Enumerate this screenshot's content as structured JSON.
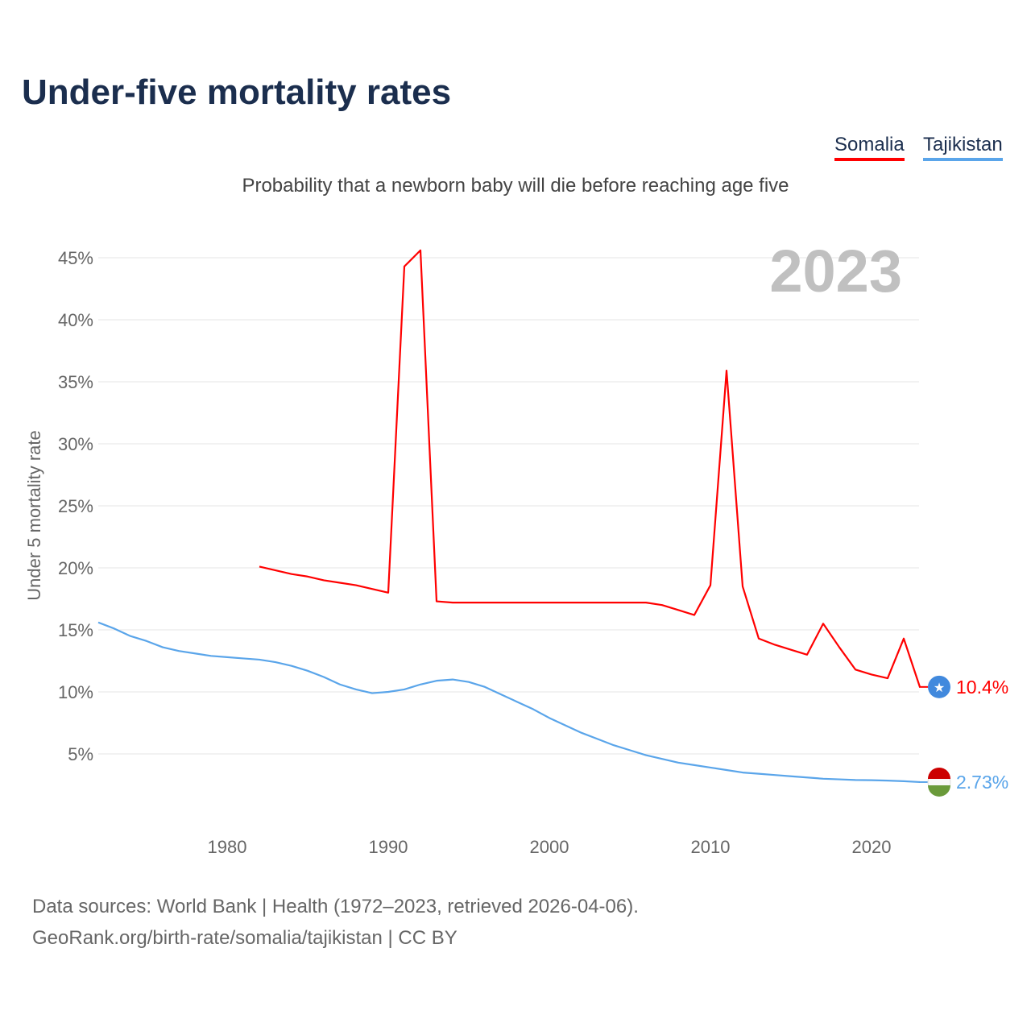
{
  "title": "Under-five mortality rates",
  "subtitle": "Probability that a newborn baby will die before reaching age five",
  "year_label": "2023",
  "source_lines": [
    "Data sources: World Bank | Health (1972–2023, retrieved 2026-04-06).",
    "GeoRank.org/birth-rate/somalia/tajikistan | CC BY"
  ],
  "chart_data": {
    "type": "line",
    "ylabel": "Under 5 mortality rate",
    "xlim": [
      1972,
      2023
    ],
    "ylim": [
      0,
      47
    ],
    "yticks": [
      5,
      10,
      15,
      20,
      25,
      30,
      35,
      40,
      45
    ],
    "ytick_labels": [
      "5%",
      "10%",
      "15%",
      "20%",
      "25%",
      "30%",
      "35%",
      "40%",
      "45%"
    ],
    "xticks": [
      1980,
      1990,
      2000,
      2010,
      2020
    ],
    "xtick_labels": [
      "1980",
      "1990",
      "2000",
      "2010",
      "2020"
    ],
    "grid": true,
    "legend": "top-right",
    "series": [
      {
        "name": "Somalia",
        "color": "#ff0000",
        "end_label": "10.4%",
        "x": [
          1982,
          1983,
          1984,
          1985,
          1986,
          1987,
          1988,
          1989,
          1990,
          1991,
          1992,
          1993,
          1994,
          1995,
          1996,
          1997,
          1998,
          1999,
          2000,
          2001,
          2002,
          2003,
          2004,
          2005,
          2006,
          2007,
          2008,
          2009,
          2010,
          2011,
          2012,
          2013,
          2014,
          2015,
          2016,
          2017,
          2018,
          2019,
          2020,
          2021,
          2022,
          2023
        ],
        "values": [
          20.1,
          19.8,
          19.5,
          19.3,
          19.0,
          18.8,
          18.6,
          18.3,
          18.0,
          44.3,
          45.6,
          17.3,
          17.2,
          17.2,
          17.2,
          17.2,
          17.2,
          17.2,
          17.2,
          17.2,
          17.2,
          17.2,
          17.2,
          17.2,
          17.2,
          17.0,
          16.6,
          16.2,
          18.6,
          35.9,
          18.5,
          14.3,
          13.8,
          13.4,
          13.0,
          15.5,
          13.6,
          11.8,
          11.4,
          11.1,
          14.3,
          10.4
        ]
      },
      {
        "name": "Tajikistan",
        "color": "#5aa5ea",
        "end_label": "2.73%",
        "x": [
          1972,
          1973,
          1974,
          1975,
          1976,
          1977,
          1978,
          1979,
          1980,
          1981,
          1982,
          1983,
          1984,
          1985,
          1986,
          1987,
          1988,
          1989,
          1990,
          1991,
          1992,
          1993,
          1994,
          1995,
          1996,
          1997,
          1998,
          1999,
          2000,
          2001,
          2002,
          2003,
          2004,
          2005,
          2006,
          2007,
          2008,
          2009,
          2010,
          2011,
          2012,
          2013,
          2014,
          2015,
          2016,
          2017,
          2018,
          2019,
          2020,
          2021,
          2022,
          2023
        ],
        "values": [
          15.6,
          15.1,
          14.5,
          14.1,
          13.6,
          13.3,
          13.1,
          12.9,
          12.8,
          12.7,
          12.6,
          12.4,
          12.1,
          11.7,
          11.2,
          10.6,
          10.2,
          9.9,
          10.0,
          10.2,
          10.6,
          10.9,
          11.0,
          10.8,
          10.4,
          9.8,
          9.2,
          8.6,
          7.9,
          7.3,
          6.7,
          6.2,
          5.7,
          5.3,
          4.9,
          4.6,
          4.3,
          4.1,
          3.9,
          3.7,
          3.5,
          3.4,
          3.3,
          3.2,
          3.1,
          3.0,
          2.95,
          2.9,
          2.88,
          2.85,
          2.8,
          2.73
        ]
      }
    ]
  }
}
